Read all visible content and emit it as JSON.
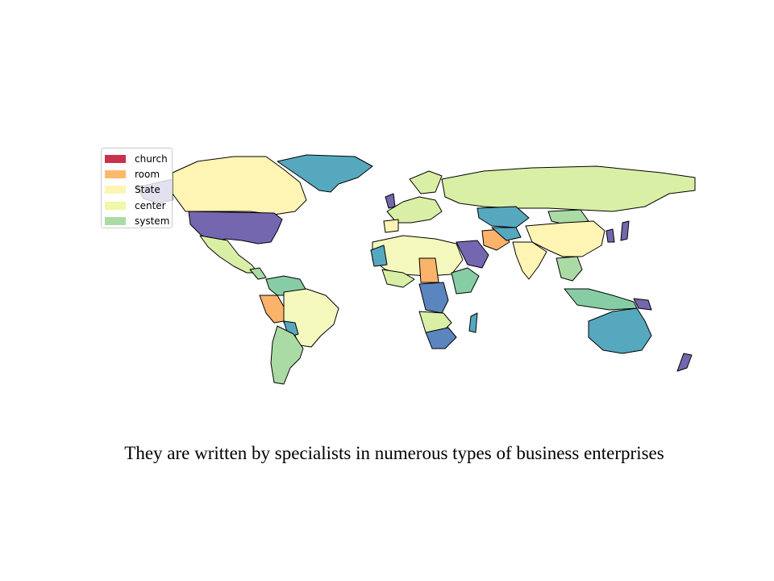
{
  "legend": {
    "items": [
      {
        "label": "church",
        "color": "#c9324b"
      },
      {
        "label": "room",
        "color": "#fdb96a"
      },
      {
        "label": "State",
        "color": "#fef4b4"
      },
      {
        "label": "center",
        "color": "#eef8a6"
      },
      {
        "label": "system",
        "color": "#abdba4"
      }
    ]
  },
  "palette": {
    "purple": "#7466af",
    "blue": "#5b85bf",
    "teal": "#56a8bf",
    "mint": "#86cda5",
    "green": "#abdba4",
    "lime": "#d9efa5",
    "yellow": "#f4f8bd",
    "cream": "#fef4b4",
    "orange": "#fbb36c",
    "border": "#000000",
    "ocean": "#ffffff"
  },
  "caption": "They are written by specialists in numerous types of business enterprises"
}
